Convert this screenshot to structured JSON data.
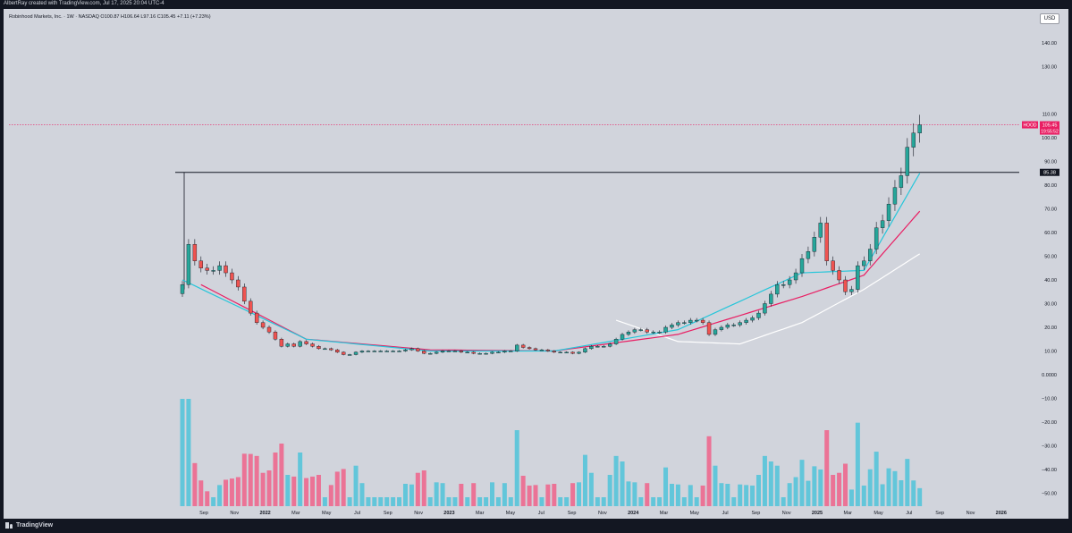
{
  "header": {
    "credit": "AlbertRay created with TradingView.com, Jul 17, 2025 20:04 UTC-4"
  },
  "legend": {
    "text": "Robinhood Markets, Inc. · 1W · NASDAQ  O100.87  H106.64  L97.16  C105.45  +7.11 (+7.23%)"
  },
  "currency": "USD",
  "footer": {
    "brand": "TradingView"
  },
  "colors": {
    "background": "#d1d4dc",
    "up": "#26a69a",
    "down": "#ef5350",
    "ema_fast": "#26c6da",
    "ema_slow": "#e91e63",
    "ema_long": "#ffffff",
    "vol_up": "#4fc3d9",
    "vol_down": "#f0628a",
    "last_price": "#e91e63"
  },
  "chart_data": {
    "type": "candlestick",
    "ticker": "HOOD",
    "timeframe": "1W",
    "price_axis": {
      "ticks": [
        "140.00",
        "130.00",
        "110.00",
        "100.00",
        "90.00",
        "80.00",
        "70.00",
        "60.00",
        "50.00",
        "40.00",
        "30.00",
        "20.00",
        "10.00",
        "0.0000",
        "−10.00",
        "−20.00",
        "−30.00",
        "−40.00",
        "−50.00"
      ],
      "log_scale": false
    },
    "time_axis": {
      "labels": [
        "Sep",
        "Nov",
        "2022",
        "Mar",
        "May",
        "Jul",
        "Sep",
        "Nov",
        "2023",
        "Mar",
        "May",
        "Jul",
        "Sep",
        "Nov",
        "2024",
        "Mar",
        "May",
        "Jul",
        "Sep",
        "Nov",
        "2025",
        "Mar",
        "May",
        "Jul",
        "Sep",
        "Nov",
        "2026"
      ]
    },
    "last_price": {
      "label": "HOOD",
      "value": "105.45",
      "countdown": "19:55:52"
    },
    "horizontal_line": {
      "value": "85.38"
    },
    "price_path": [
      [
        0,
        38
      ],
      [
        1,
        55
      ],
      [
        2,
        48
      ],
      [
        3,
        45
      ],
      [
        4,
        44
      ],
      [
        5,
        44
      ],
      [
        6,
        46
      ],
      [
        7,
        43
      ],
      [
        8,
        40
      ],
      [
        9,
        37
      ],
      [
        10,
        31
      ],
      [
        11,
        26
      ],
      [
        12,
        22
      ],
      [
        13,
        20
      ],
      [
        14,
        18
      ],
      [
        15,
        15
      ],
      [
        16,
        12
      ],
      [
        17,
        13
      ],
      [
        18,
        12
      ],
      [
        19,
        14
      ],
      [
        20,
        13
      ],
      [
        21,
        12
      ],
      [
        22,
        11
      ],
      [
        23,
        11
      ],
      [
        24,
        10.5
      ],
      [
        25,
        9.5
      ],
      [
        26,
        8.5
      ],
      [
        27,
        8.5
      ],
      [
        28,
        9.5
      ],
      [
        29,
        10
      ],
      [
        30,
        10
      ],
      [
        31,
        10
      ],
      [
        32,
        10
      ],
      [
        33,
        10
      ],
      [
        34,
        10
      ],
      [
        35,
        10
      ],
      [
        36,
        10.5
      ],
      [
        37,
        11
      ],
      [
        38,
        10
      ],
      [
        39,
        9
      ],
      [
        40,
        9
      ],
      [
        41,
        9.5
      ],
      [
        42,
        10
      ],
      [
        43,
        10
      ],
      [
        44,
        10
      ],
      [
        45,
        9.5
      ],
      [
        46,
        9.5
      ],
      [
        47,
        9
      ],
      [
        48,
        9
      ],
      [
        49,
        9
      ],
      [
        50,
        9.5
      ],
      [
        51,
        9.5
      ],
      [
        52,
        10
      ],
      [
        53,
        10
      ],
      [
        54,
        12.5
      ],
      [
        55,
        11.5
      ],
      [
        56,
        11
      ],
      [
        57,
        10.5
      ],
      [
        58,
        10.5
      ],
      [
        59,
        10
      ],
      [
        60,
        9.5
      ],
      [
        61,
        9.5
      ],
      [
        62,
        9.5
      ],
      [
        63,
        9
      ],
      [
        64,
        9.5
      ],
      [
        65,
        11
      ],
      [
        66,
        12
      ],
      [
        67,
        12
      ],
      [
        68,
        12
      ],
      [
        69,
        13
      ],
      [
        70,
        15
      ],
      [
        71,
        17
      ],
      [
        72,
        18
      ],
      [
        73,
        19
      ],
      [
        74,
        19
      ],
      [
        75,
        18
      ],
      [
        76,
        18
      ],
      [
        77,
        18
      ],
      [
        78,
        20
      ],
      [
        79,
        21
      ],
      [
        80,
        22
      ],
      [
        81,
        22
      ],
      [
        82,
        23
      ],
      [
        83,
        23
      ],
      [
        84,
        22
      ],
      [
        85,
        17
      ],
      [
        86,
        19
      ],
      [
        87,
        20
      ],
      [
        88,
        21
      ],
      [
        89,
        21
      ],
      [
        90,
        22
      ],
      [
        91,
        23
      ],
      [
        92,
        24
      ],
      [
        93,
        26
      ],
      [
        94,
        30
      ],
      [
        95,
        34
      ],
      [
        96,
        38
      ],
      [
        97,
        38
      ],
      [
        98,
        40
      ],
      [
        99,
        43
      ],
      [
        100,
        49
      ],
      [
        101,
        52
      ],
      [
        102,
        58
      ],
      [
        103,
        64
      ],
      [
        104,
        48
      ],
      [
        105,
        44
      ],
      [
        106,
        40
      ],
      [
        107,
        35
      ],
      [
        108,
        36
      ],
      [
        109,
        46
      ],
      [
        110,
        48
      ],
      [
        111,
        53
      ],
      [
        112,
        62
      ],
      [
        113,
        65
      ],
      [
        114,
        72
      ],
      [
        115,
        79
      ],
      [
        116,
        84
      ],
      [
        117,
        96
      ],
      [
        118,
        102
      ],
      [
        119,
        105.45
      ]
    ],
    "ema_fast": [
      [
        0,
        40
      ],
      [
        20,
        15
      ],
      [
        40,
        10
      ],
      [
        60,
        10
      ],
      [
        80,
        19
      ],
      [
        100,
        43
      ],
      [
        110,
        44
      ],
      [
        119,
        85
      ]
    ],
    "ema_slow": [
      [
        3,
        38
      ],
      [
        20,
        15
      ],
      [
        40,
        10.5
      ],
      [
        60,
        10
      ],
      [
        80,
        17
      ],
      [
        100,
        33
      ],
      [
        110,
        42
      ],
      [
        119,
        69
      ]
    ],
    "ema_long": [
      [
        70,
        23
      ],
      [
        80,
        14
      ],
      [
        90,
        13
      ],
      [
        100,
        22
      ],
      [
        110,
        36
      ],
      [
        119,
        51
      ]
    ]
  }
}
